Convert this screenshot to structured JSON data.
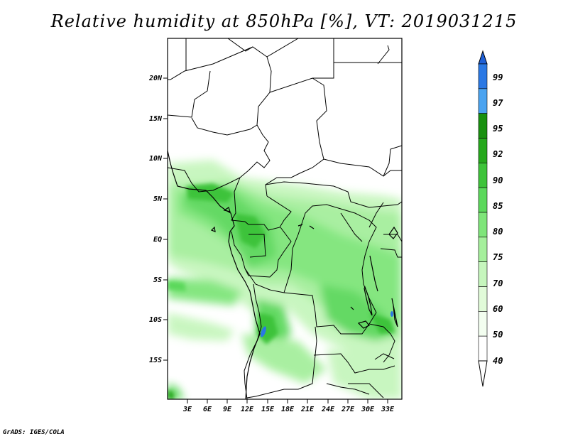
{
  "title": "Relative humidity at 850hPa [%], VT: 2019031215",
  "footer": "GrADS: IGES/COLA",
  "map": {
    "lat_labels": [
      "20N",
      "15N",
      "10N",
      "5N",
      "EQ",
      "5S",
      "10S",
      "15S"
    ],
    "lon_labels": [
      "3E",
      "6E",
      "9E",
      "12E",
      "15E",
      "18E",
      "21E",
      "24E",
      "27E",
      "30E",
      "33E"
    ]
  },
  "colorbar": {
    "levels": [
      "99",
      "97",
      "95",
      "92",
      "90",
      "85",
      "80",
      "75",
      "70",
      "60",
      "50",
      "40"
    ],
    "colors": [
      "#1e5fd6",
      "#2a78e4",
      "#4aa3f0",
      "#18900f",
      "#25a81c",
      "#3ec33a",
      "#5cd85c",
      "#7fe57a",
      "#a5ef9c",
      "#c6f6bd",
      "#e1fbd9",
      "#f3fef0",
      "#ffffff"
    ]
  }
}
